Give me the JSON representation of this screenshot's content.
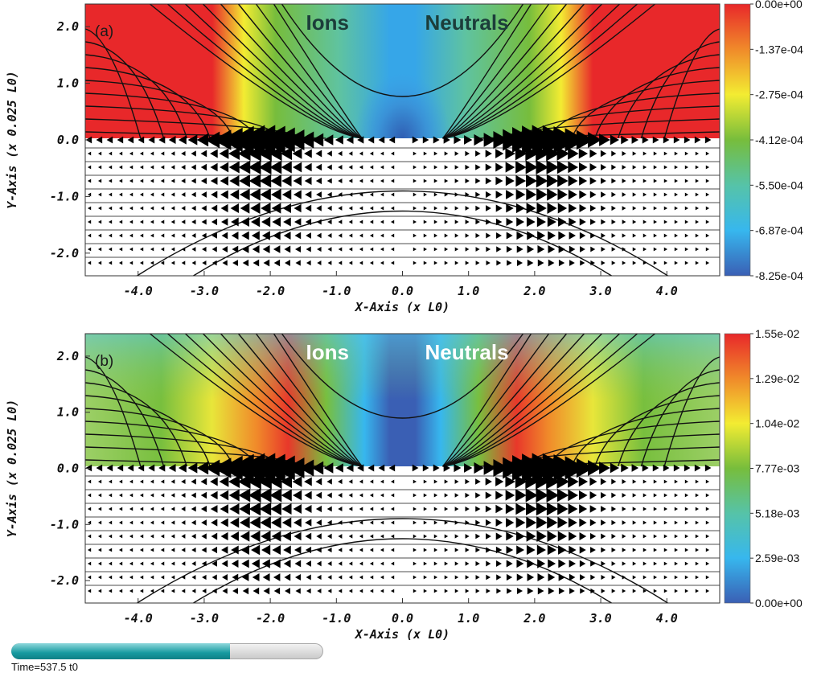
{
  "chart_data": [
    {
      "type": "heatmap",
      "panel_label": "(a)",
      "xlabel": "X-Axis (x L0)",
      "ylabel": "Y-Axis (x 0.025 L0)",
      "xlim": [
        -4.8,
        4.8
      ],
      "ylim": [
        -2.4,
        2.4
      ],
      "x_ticks": [
        -4.0,
        -3.0,
        -2.0,
        -1.0,
        0.0,
        1.0,
        2.0,
        3.0,
        4.0
      ],
      "x_tick_labels": [
        "-4.0",
        "-3.0",
        "-2.0",
        "-1.0",
        "0.0",
        "1.0",
        "2.0",
        "3.0",
        "4.0"
      ],
      "y_ticks": [
        2.0,
        1.0,
        0.0,
        -1.0,
        -2.0
      ],
      "y_tick_labels": [
        "2.0",
        "1.0",
        "0.0",
        "-1.0",
        "-2.0"
      ],
      "annotations": [
        "Ions",
        "Neutrals"
      ],
      "colorbar": {
        "min": -0.000825,
        "max": 0.0,
        "tick_values": [
          0.0,
          -0.000137,
          -0.000275,
          -0.000412,
          -0.00055,
          -0.000687,
          -0.000825
        ],
        "tick_labels": [
          "0.00e+00",
          "-1.37e-04",
          "-2.75e-04",
          "-4.12e-04",
          "-5.50e-04",
          "-6.87e-04",
          "-8.25e-04"
        ],
        "colors_top_to_bottom": [
          "#e8282a",
          "#f08a2a",
          "#f3ec32",
          "#77bd3c",
          "#56c3a8",
          "#37b7ee",
          "#3a5fb4"
        ]
      }
    },
    {
      "type": "heatmap",
      "panel_label": "(b)",
      "xlabel": "X-Axis (x L0)",
      "ylabel": "Y-Axis (x 0.025 L0)",
      "xlim": [
        -4.8,
        4.8
      ],
      "ylim": [
        -2.4,
        2.4
      ],
      "x_ticks": [
        -4.0,
        -3.0,
        -2.0,
        -1.0,
        0.0,
        1.0,
        2.0,
        3.0,
        4.0
      ],
      "x_tick_labels": [
        "-4.0",
        "-3.0",
        "-2.0",
        "-1.0",
        "0.0",
        "1.0",
        "2.0",
        "3.0",
        "4.0"
      ],
      "y_ticks": [
        2.0,
        1.0,
        0.0,
        -1.0,
        -2.0
      ],
      "y_tick_labels": [
        "2.0",
        "1.0",
        "0.0",
        "-1.0",
        "-2.0"
      ],
      "annotations": [
        "Ions",
        "Neutrals"
      ],
      "colorbar": {
        "min": 0.0,
        "max": 0.0155,
        "tick_values": [
          0.0155,
          0.0129,
          0.0104,
          0.00777,
          0.00518,
          0.00259,
          0.0
        ],
        "tick_labels": [
          "1.55e-02",
          "1.29e-02",
          "1.04e-02",
          "7.77e-03",
          "5.18e-03",
          "2.59e-03",
          "0.00e+00"
        ],
        "colors_top_to_bottom": [
          "#e8282a",
          "#f08a2a",
          "#f3ec32",
          "#77bd3c",
          "#56c3a8",
          "#37b7ee",
          "#3a5fb4"
        ]
      }
    }
  ],
  "time_slider": {
    "label": "Time=537.5 t0",
    "progress": 0.7
  }
}
